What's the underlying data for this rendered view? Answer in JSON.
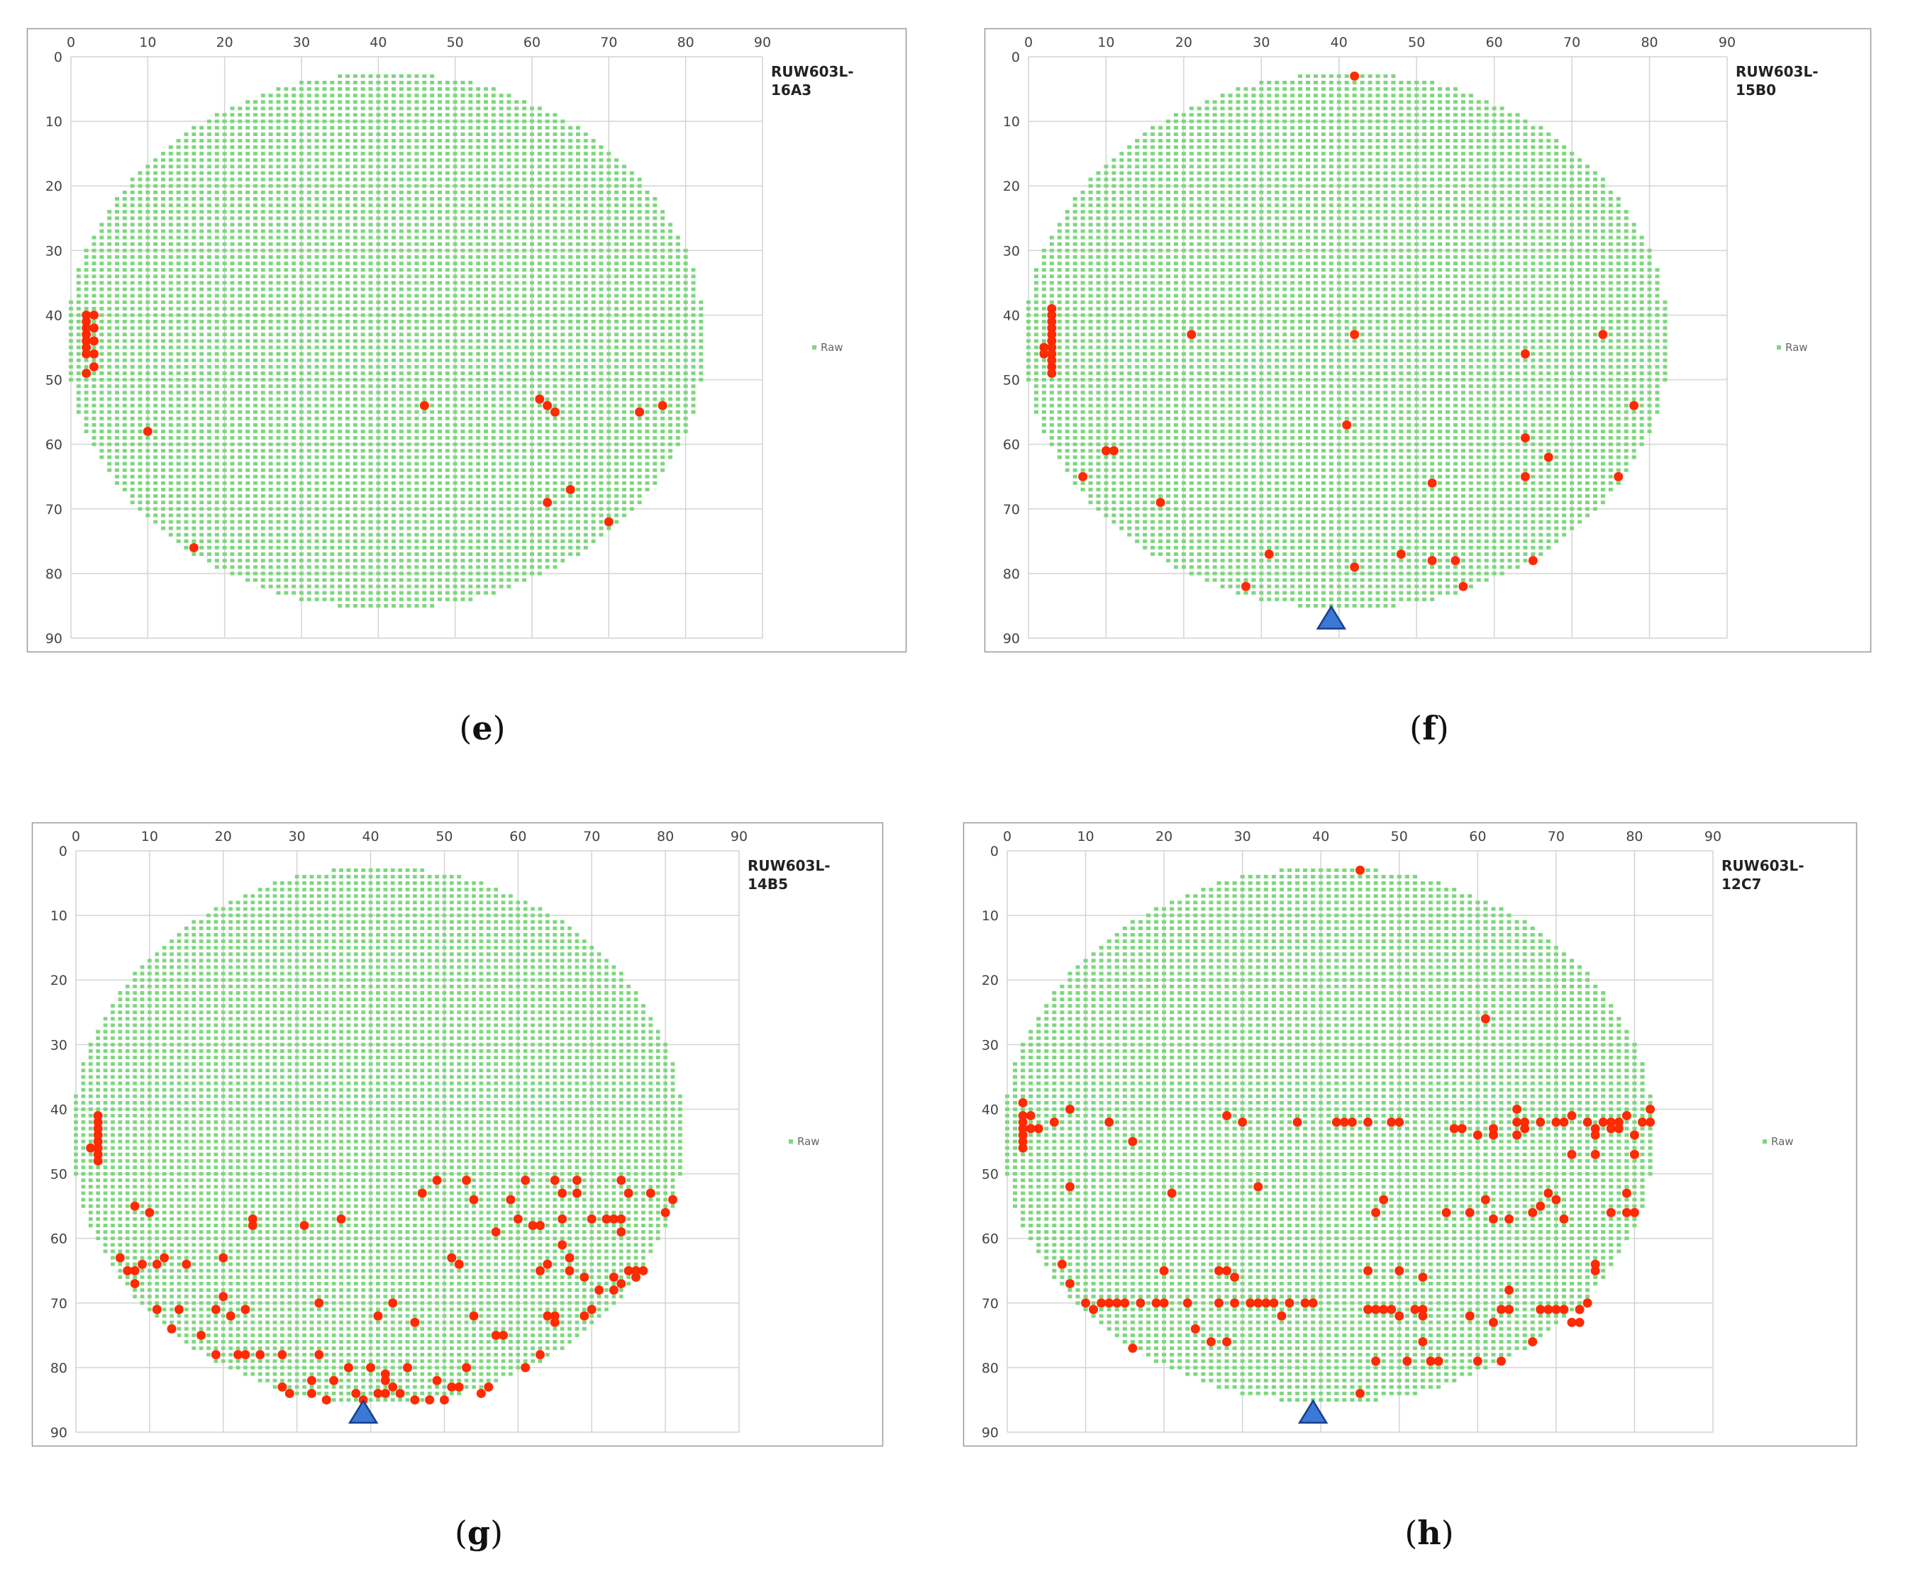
{
  "colors": {
    "good_die": "#7ed67e",
    "fail_die": "#ff2a00",
    "notch": "#3a7ad6",
    "notch_stroke": "#1a3f8a",
    "grid": "#d4d4d4",
    "frame": "#9a9a9a"
  },
  "chart_data": [
    {
      "type": "scatter",
      "panel_label": "e",
      "wafer_id_lines": [
        "RUW603L-",
        "16A3"
      ],
      "legend_label": "Raw",
      "x_ticks": [
        "0",
        "10",
        "20",
        "30",
        "40",
        "50",
        "60",
        "70",
        "80",
        "90"
      ],
      "y_ticks": [
        "0",
        "10",
        "20",
        "30",
        "40",
        "50",
        "60",
        "70",
        "80",
        "90"
      ],
      "xlim": [
        0,
        90
      ],
      "ylim": [
        0,
        90
      ],
      "wafer_center": [
        41,
        44
      ],
      "wafer_radius": 41.5,
      "notch": null,
      "fail_points": [
        [
          2,
          40
        ],
        [
          2,
          41
        ],
        [
          2,
          42
        ],
        [
          2,
          43
        ],
        [
          2,
          44
        ],
        [
          2,
          45
        ],
        [
          2,
          46
        ],
        [
          3,
          40
        ],
        [
          3,
          42
        ],
        [
          3,
          44
        ],
        [
          3,
          46
        ],
        [
          3,
          48
        ],
        [
          2,
          49
        ],
        [
          10,
          58
        ],
        [
          16,
          76
        ],
        [
          46,
          54
        ],
        [
          61,
          53
        ],
        [
          62,
          54
        ],
        [
          63,
          55
        ],
        [
          74,
          55
        ],
        [
          77,
          54
        ],
        [
          62,
          69
        ],
        [
          65,
          67
        ],
        [
          70,
          72
        ]
      ]
    },
    {
      "type": "scatter",
      "panel_label": "f",
      "wafer_id_lines": [
        "RUW603L-",
        "15B0"
      ],
      "legend_label": "Raw",
      "x_ticks": [
        "0",
        "10",
        "20",
        "30",
        "40",
        "50",
        "60",
        "70",
        "80",
        "90"
      ],
      "y_ticks": [
        "0",
        "10",
        "20",
        "30",
        "40",
        "50",
        "60",
        "70",
        "80",
        "90"
      ],
      "xlim": [
        0,
        90
      ],
      "ylim": [
        0,
        90
      ],
      "wafer_center": [
        41,
        44
      ],
      "wafer_radius": 41.5,
      "notch": [
        39,
        87
      ],
      "fail_points": [
        [
          2,
          45
        ],
        [
          2,
          46
        ],
        [
          3,
          39
        ],
        [
          3,
          40
        ],
        [
          3,
          41
        ],
        [
          3,
          42
        ],
        [
          3,
          43
        ],
        [
          3,
          44
        ],
        [
          3,
          45
        ],
        [
          3,
          46
        ],
        [
          3,
          47
        ],
        [
          3,
          48
        ],
        [
          3,
          49
        ],
        [
          42,
          3
        ],
        [
          21,
          43
        ],
        [
          42,
          43
        ],
        [
          64,
          46
        ],
        [
          74,
          43
        ],
        [
          41,
          57
        ],
        [
          78,
          54
        ],
        [
          64,
          59
        ],
        [
          67,
          62
        ],
        [
          7,
          65
        ],
        [
          10,
          61
        ],
        [
          11,
          61
        ],
        [
          64,
          65
        ],
        [
          76,
          65
        ],
        [
          17,
          69
        ],
        [
          52,
          66
        ],
        [
          31,
          77
        ],
        [
          42,
          79
        ],
        [
          48,
          77
        ],
        [
          52,
          78
        ],
        [
          55,
          78
        ],
        [
          65,
          78
        ],
        [
          28,
          82
        ],
        [
          56,
          82
        ]
      ]
    },
    {
      "type": "scatter",
      "panel_label": "g",
      "wafer_id_lines": [
        "RUW603L-",
        "14B5"
      ],
      "legend_label": "Raw",
      "x_ticks": [
        "0",
        "10",
        "20",
        "30",
        "40",
        "50",
        "60",
        "70",
        "80",
        "90"
      ],
      "y_ticks": [
        "0",
        "10",
        "20",
        "30",
        "40",
        "50",
        "60",
        "70",
        "80",
        "90"
      ],
      "xlim": [
        0,
        90
      ],
      "ylim": [
        0,
        90
      ],
      "wafer_center": [
        41,
        44
      ],
      "wafer_radius": 41.5,
      "notch": [
        39,
        87
      ],
      "fail_points": [
        [
          2,
          46
        ],
        [
          3,
          41
        ],
        [
          3,
          42
        ],
        [
          3,
          43
        ],
        [
          3,
          44
        ],
        [
          3,
          45
        ],
        [
          3,
          46
        ],
        [
          3,
          47
        ],
        [
          3,
          48
        ],
        [
          6,
          63
        ],
        [
          7,
          65
        ],
        [
          8,
          55
        ],
        [
          8,
          65
        ],
        [
          8,
          67
        ],
        [
          9,
          64
        ],
        [
          10,
          56
        ],
        [
          11,
          64
        ],
        [
          11,
          71
        ],
        [
          12,
          63
        ],
        [
          13,
          74
        ],
        [
          14,
          71
        ],
        [
          15,
          64
        ],
        [
          17,
          75
        ],
        [
          19,
          71
        ],
        [
          19,
          78
        ],
        [
          20,
          63
        ],
        [
          20,
          69
        ],
        [
          21,
          72
        ],
        [
          22,
          78
        ],
        [
          23,
          71
        ],
        [
          23,
          78
        ],
        [
          24,
          57
        ],
        [
          24,
          58
        ],
        [
          25,
          78
        ],
        [
          28,
          78
        ],
        [
          28,
          83
        ],
        [
          29,
          84
        ],
        [
          31,
          58
        ],
        [
          32,
          82
        ],
        [
          32,
          84
        ],
        [
          33,
          70
        ],
        [
          33,
          78
        ],
        [
          34,
          85
        ],
        [
          35,
          82
        ],
        [
          36,
          57
        ],
        [
          37,
          80
        ],
        [
          38,
          84
        ],
        [
          39,
          85
        ],
        [
          40,
          80
        ],
        [
          41,
          72
        ],
        [
          41,
          84
        ],
        [
          42,
          81
        ],
        [
          42,
          82
        ],
        [
          42,
          84
        ],
        [
          43,
          70
        ],
        [
          43,
          83
        ],
        [
          44,
          84
        ],
        [
          45,
          80
        ],
        [
          46,
          73
        ],
        [
          46,
          85
        ],
        [
          47,
          53
        ],
        [
          48,
          85
        ],
        [
          49,
          51
        ],
        [
          49,
          82
        ],
        [
          50,
          85
        ],
        [
          51,
          63
        ],
        [
          51,
          83
        ],
        [
          52,
          64
        ],
        [
          52,
          83
        ],
        [
          53,
          51
        ],
        [
          53,
          80
        ],
        [
          54,
          54
        ],
        [
          54,
          72
        ],
        [
          55,
          84
        ],
        [
          56,
          83
        ],
        [
          57,
          75
        ],
        [
          57,
          59
        ],
        [
          58,
          75
        ],
        [
          59,
          54
        ],
        [
          60,
          57
        ],
        [
          61,
          51
        ],
        [
          61,
          80
        ],
        [
          62,
          58
        ],
        [
          63,
          65
        ],
        [
          63,
          58
        ],
        [
          63,
          78
        ],
        [
          64,
          72
        ],
        [
          64,
          64
        ],
        [
          65,
          51
        ],
        [
          65,
          72
        ],
        [
          65,
          73
        ],
        [
          66,
          53
        ],
        [
          66,
          61
        ],
        [
          66,
          57
        ],
        [
          67,
          63
        ],
        [
          67,
          65
        ],
        [
          68,
          51
        ],
        [
          68,
          53
        ],
        [
          69,
          66
        ],
        [
          69,
          72
        ],
        [
          70,
          71
        ],
        [
          70,
          57
        ],
        [
          71,
          68
        ],
        [
          72,
          57
        ],
        [
          73,
          57
        ],
        [
          73,
          66
        ],
        [
          73,
          68
        ],
        [
          74,
          51
        ],
        [
          74,
          67
        ],
        [
          74,
          57
        ],
        [
          74,
          59
        ],
        [
          75,
          53
        ],
        [
          75,
          65
        ],
        [
          76,
          66
        ],
        [
          76,
          65
        ],
        [
          77,
          65
        ],
        [
          78,
          53
        ],
        [
          80,
          56
        ],
        [
          81,
          54
        ]
      ]
    },
    {
      "type": "scatter",
      "panel_label": "h",
      "wafer_id_lines": [
        "RUW603L-",
        "12C7"
      ],
      "legend_label": "Raw",
      "x_ticks": [
        "0",
        "10",
        "20",
        "30",
        "40",
        "50",
        "60",
        "70",
        "80",
        "90"
      ],
      "y_ticks": [
        "0",
        "10",
        "20",
        "30",
        "40",
        "50",
        "60",
        "70",
        "80",
        "90"
      ],
      "xlim": [
        0,
        90
      ],
      "ylim": [
        0,
        90
      ],
      "wafer_center": [
        41,
        44
      ],
      "wafer_radius": 41.5,
      "notch": [
        39,
        87
      ],
      "fail_points": [
        [
          2,
          39
        ],
        [
          2,
          41
        ],
        [
          2,
          42
        ],
        [
          2,
          43
        ],
        [
          2,
          44
        ],
        [
          2,
          45
        ],
        [
          2,
          46
        ],
        [
          3,
          41
        ],
        [
          3,
          43
        ],
        [
          4,
          43
        ],
        [
          6,
          42
        ],
        [
          8,
          40
        ],
        [
          8,
          52
        ],
        [
          7,
          64
        ],
        [
          8,
          67
        ],
        [
          10,
          70
        ],
        [
          11,
          71
        ],
        [
          12,
          70
        ],
        [
          13,
          42
        ],
        [
          13,
          70
        ],
        [
          14,
          70
        ],
        [
          15,
          70
        ],
        [
          16,
          45
        ],
        [
          16,
          77
        ],
        [
          17,
          70
        ],
        [
          19,
          70
        ],
        [
          20,
          65
        ],
        [
          20,
          70
        ],
        [
          21,
          53
        ],
        [
          23,
          70
        ],
        [
          24,
          74
        ],
        [
          26,
          76
        ],
        [
          27,
          70
        ],
        [
          27,
          65
        ],
        [
          28,
          41
        ],
        [
          28,
          65
        ],
        [
          28,
          76
        ],
        [
          29,
          66
        ],
        [
          29,
          70
        ],
        [
          30,
          42
        ],
        [
          31,
          70
        ],
        [
          32,
          52
        ],
        [
          32,
          70
        ],
        [
          33,
          70
        ],
        [
          34,
          70
        ],
        [
          35,
          72
        ],
        [
          36,
          70
        ],
        [
          37,
          42
        ],
        [
          38,
          70
        ],
        [
          39,
          70
        ],
        [
          42,
          42
        ],
        [
          43,
          42
        ],
        [
          44,
          42
        ],
        [
          45,
          3
        ],
        [
          45,
          84
        ],
        [
          46,
          42
        ],
        [
          46,
          65
        ],
        [
          46,
          71
        ],
        [
          47,
          56
        ],
        [
          47,
          71
        ],
        [
          47,
          79
        ],
        [
          48,
          54
        ],
        [
          48,
          71
        ],
        [
          49,
          42
        ],
        [
          49,
          71
        ],
        [
          50,
          42
        ],
        [
          50,
          65
        ],
        [
          50,
          72
        ],
        [
          51,
          79
        ],
        [
          52,
          71
        ],
        [
          53,
          71
        ],
        [
          53,
          66
        ],
        [
          53,
          72
        ],
        [
          53,
          76
        ],
        [
          54,
          79
        ],
        [
          55,
          79
        ],
        [
          56,
          56
        ],
        [
          57,
          43
        ],
        [
          58,
          43
        ],
        [
          59,
          56
        ],
        [
          59,
          72
        ],
        [
          60,
          44
        ],
        [
          60,
          79
        ],
        [
          61,
          26
        ],
        [
          61,
          54
        ],
        [
          62,
          43
        ],
        [
          62,
          44
        ],
        [
          62,
          57
        ],
        [
          62,
          73
        ],
        [
          63,
          71
        ],
        [
          63,
          79
        ],
        [
          64,
          57
        ],
        [
          64,
          68
        ],
        [
          64,
          71
        ],
        [
          65,
          42
        ],
        [
          65,
          40
        ],
        [
          65,
          44
        ],
        [
          66,
          43
        ],
        [
          66,
          42
        ],
        [
          67,
          56
        ],
        [
          67,
          76
        ],
        [
          68,
          42
        ],
        [
          68,
          55
        ],
        [
          68,
          71
        ],
        [
          69,
          71
        ],
        [
          69,
          53
        ],
        [
          70,
          42
        ],
        [
          70,
          54
        ],
        [
          70,
          71
        ],
        [
          71,
          42
        ],
        [
          71,
          57
        ],
        [
          71,
          71
        ],
        [
          72,
          41
        ],
        [
          72,
          47
        ],
        [
          72,
          73
        ],
        [
          73,
          73
        ],
        [
          73,
          71
        ],
        [
          74,
          42
        ],
        [
          74,
          70
        ],
        [
          75,
          43
        ],
        [
          75,
          44
        ],
        [
          75,
          47
        ],
        [
          75,
          64
        ],
        [
          75,
          65
        ],
        [
          76,
          42
        ],
        [
          77,
          42
        ],
        [
          77,
          43
        ],
        [
          77,
          56
        ],
        [
          78,
          42
        ],
        [
          78,
          43
        ],
        [
          79,
          41
        ],
        [
          79,
          53
        ],
        [
          79,
          56
        ],
        [
          80,
          44
        ],
        [
          80,
          47
        ],
        [
          80,
          56
        ],
        [
          81,
          42
        ],
        [
          82,
          40
        ],
        [
          82,
          42
        ]
      ]
    }
  ]
}
